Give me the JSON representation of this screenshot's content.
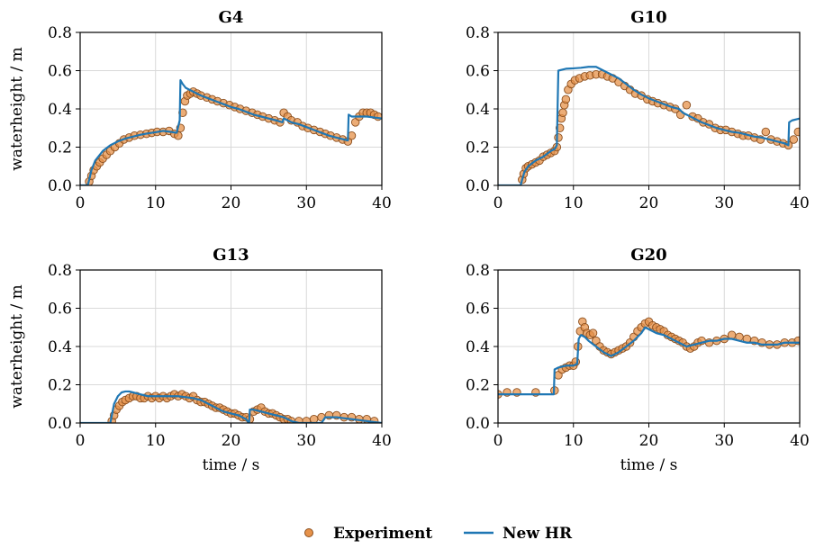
{
  "colors": {
    "experiment_fill": "#e6924a",
    "experiment_edge": "#8a4d1c",
    "model_line": "#1f77b4",
    "grid": "#d9d9d9"
  },
  "legend": {
    "items": [
      {
        "label": "Experiment",
        "marker": "circle"
      },
      {
        "label": "New HR",
        "marker": "line"
      }
    ],
    "placement": "bottom-center"
  },
  "chart_data": [
    {
      "type": "line",
      "title": "G4",
      "xlabel": "",
      "ylabel": "waterheight / m",
      "xlim": [
        0,
        40
      ],
      "ylim": [
        0,
        0.8
      ],
      "xticks": [
        "0",
        "10",
        "20",
        "30",
        "40"
      ],
      "yticks": [
        "0.0",
        "0.2",
        "0.4",
        "0.6",
        "0.8"
      ],
      "grid": true,
      "series": [
        {
          "name": "Experiment",
          "kind": "scatter",
          "x": [
            1.2,
            1.5,
            1.8,
            2.2,
            2.6,
            3.0,
            3.5,
            4.0,
            4.6,
            5.2,
            5.8,
            6.5,
            7.2,
            8.0,
            8.8,
            9.5,
            10.2,
            11.0,
            11.8,
            12.5,
            13.0,
            13.3,
            13.6,
            13.9,
            14.2,
            14.6,
            15.0,
            15.5,
            16.0,
            16.8,
            17.5,
            18.2,
            19.0,
            19.8,
            20.5,
            21.2,
            22.0,
            22.8,
            23.5,
            24.2,
            25.0,
            25.8,
            26.5,
            27.0,
            27.5,
            28.0,
            28.8,
            29.5,
            30.2,
            31.0,
            31.8,
            32.5,
            33.2,
            34.0,
            34.8,
            35.5,
            36.0,
            36.5,
            37.0,
            37.5,
            38.0,
            38.5,
            39.0,
            39.5
          ],
          "y": [
            0.02,
            0.05,
            0.08,
            0.1,
            0.12,
            0.14,
            0.16,
            0.18,
            0.2,
            0.22,
            0.24,
            0.25,
            0.26,
            0.265,
            0.27,
            0.275,
            0.28,
            0.28,
            0.285,
            0.27,
            0.26,
            0.3,
            0.38,
            0.44,
            0.47,
            0.48,
            0.49,
            0.48,
            0.47,
            0.46,
            0.45,
            0.44,
            0.43,
            0.42,
            0.41,
            0.4,
            0.39,
            0.38,
            0.37,
            0.36,
            0.35,
            0.34,
            0.33,
            0.38,
            0.36,
            0.34,
            0.33,
            0.31,
            0.3,
            0.29,
            0.28,
            0.27,
            0.26,
            0.25,
            0.24,
            0.23,
            0.26,
            0.33,
            0.36,
            0.38,
            0.38,
            0.38,
            0.37,
            0.36
          ]
        },
        {
          "name": "New HR",
          "kind": "line",
          "x": [
            0,
            1.0,
            1.2,
            1.5,
            2.0,
            3.0,
            4.0,
            5.0,
            6.0,
            7.0,
            8.0,
            9.0,
            10.0,
            11.0,
            12.0,
            12.8,
            13.2,
            13.3,
            13.6,
            14.0,
            15.0,
            16.0,
            17.0,
            18.0,
            19.0,
            20.0,
            21.0,
            22.0,
            23.0,
            24.0,
            25.0,
            26.0,
            26.8,
            27.0,
            27.5,
            28.0,
            29.0,
            30.0,
            31.0,
            32.0,
            33.0,
            34.0,
            35.0,
            35.5,
            35.6,
            36.0,
            37.0,
            38.0,
            39.0,
            40.0
          ],
          "y": [
            0,
            0,
            0.03,
            0.08,
            0.13,
            0.18,
            0.21,
            0.23,
            0.245,
            0.255,
            0.265,
            0.272,
            0.278,
            0.285,
            0.28,
            0.275,
            0.34,
            0.55,
            0.53,
            0.51,
            0.49,
            0.47,
            0.455,
            0.44,
            0.425,
            0.41,
            0.4,
            0.385,
            0.37,
            0.36,
            0.35,
            0.34,
            0.33,
            0.35,
            0.34,
            0.33,
            0.32,
            0.305,
            0.29,
            0.275,
            0.26,
            0.25,
            0.24,
            0.235,
            0.37,
            0.36,
            0.36,
            0.36,
            0.355,
            0.35
          ]
        }
      ]
    },
    {
      "type": "line",
      "title": "G10",
      "xlabel": "",
      "ylabel": "",
      "xlim": [
        0,
        40
      ],
      "ylim": [
        0,
        0.8
      ],
      "xticks": [
        "0",
        "10",
        "20",
        "30",
        "40"
      ],
      "yticks": [
        "0.0",
        "0.2",
        "0.4",
        "0.6",
        "0.8"
      ],
      "grid": true,
      "series": [
        {
          "name": "Experiment",
          "kind": "scatter",
          "x": [
            3.2,
            3.4,
            3.7,
            4.0,
            4.5,
            5.0,
            5.5,
            6.0,
            6.5,
            7.0,
            7.5,
            7.8,
            8.0,
            8.2,
            8.4,
            8.6,
            8.8,
            9.0,
            9.3,
            9.7,
            10.2,
            10.8,
            11.5,
            12.2,
            13.0,
            13.8,
            14.5,
            15.2,
            16.0,
            16.8,
            17.5,
            18.2,
            19.0,
            19.8,
            20.5,
            21.2,
            22.0,
            22.8,
            23.5,
            24.2,
            25.0,
            25.8,
            26.5,
            27.2,
            28.0,
            28.8,
            29.5,
            30.2,
            31.0,
            31.8,
            32.5,
            33.2,
            34.0,
            34.8,
            35.5,
            36.2,
            37.0,
            37.8,
            38.5,
            39.2,
            39.8
          ],
          "y": [
            0.03,
            0.06,
            0.09,
            0.1,
            0.11,
            0.12,
            0.13,
            0.15,
            0.16,
            0.17,
            0.18,
            0.2,
            0.25,
            0.3,
            0.35,
            0.38,
            0.42,
            0.45,
            0.5,
            0.53,
            0.55,
            0.56,
            0.57,
            0.575,
            0.58,
            0.58,
            0.57,
            0.56,
            0.54,
            0.52,
            0.5,
            0.48,
            0.47,
            0.45,
            0.44,
            0.43,
            0.42,
            0.41,
            0.4,
            0.37,
            0.42,
            0.36,
            0.35,
            0.33,
            0.32,
            0.3,
            0.29,
            0.29,
            0.28,
            0.27,
            0.26,
            0.26,
            0.25,
            0.24,
            0.28,
            0.24,
            0.23,
            0.22,
            0.21,
            0.24,
            0.28
          ]
        },
        {
          "name": "New HR",
          "kind": "line",
          "x": [
            0,
            3.0,
            3.2,
            3.5,
            4.0,
            5.0,
            6.0,
            7.0,
            7.5,
            7.8,
            8.0,
            8.5,
            9.0,
            10.0,
            11.0,
            12.0,
            13.0,
            13.5,
            14.0,
            15.0,
            16.0,
            17.0,
            18.0,
            19.0,
            20.0,
            21.0,
            22.0,
            23.0,
            24.0,
            24.5,
            25.0,
            26.0,
            27.0,
            28.0,
            29.0,
            30.0,
            31.0,
            32.0,
            33.0,
            34.0,
            35.0,
            36.0,
            37.0,
            38.0,
            38.5,
            38.6,
            39.0,
            40.0
          ],
          "y": [
            0,
            0,
            0.03,
            0.07,
            0.1,
            0.13,
            0.15,
            0.18,
            0.19,
            0.21,
            0.6,
            0.605,
            0.61,
            0.612,
            0.615,
            0.62,
            0.62,
            0.61,
            0.6,
            0.58,
            0.56,
            0.53,
            0.5,
            0.475,
            0.455,
            0.44,
            0.425,
            0.41,
            0.4,
            0.38,
            0.37,
            0.35,
            0.33,
            0.315,
            0.3,
            0.29,
            0.28,
            0.275,
            0.265,
            0.255,
            0.25,
            0.24,
            0.23,
            0.22,
            0.21,
            0.33,
            0.34,
            0.35
          ]
        }
      ]
    },
    {
      "type": "line",
      "title": "G13",
      "xlabel": "time / s",
      "ylabel": "waterheight / m",
      "xlim": [
        0,
        40
      ],
      "ylim": [
        0,
        0.8
      ],
      "xticks": [
        "0",
        "10",
        "20",
        "30",
        "40"
      ],
      "yticks": [
        "0.0",
        "0.2",
        "0.4",
        "0.6",
        "0.8"
      ],
      "grid": true,
      "series": [
        {
          "name": "Experiment",
          "kind": "scatter",
          "x": [
            4.2,
            4.5,
            4.8,
            5.2,
            5.6,
            6.0,
            6.5,
            7.0,
            7.5,
            8.0,
            8.5,
            9.0,
            9.5,
            10.0,
            10.5,
            11.0,
            11.5,
            12.0,
            12.5,
            13.0,
            13.5,
            14.0,
            14.5,
            15.0,
            15.5,
            16.0,
            16.5,
            17.0,
            17.5,
            18.0,
            18.5,
            19.0,
            19.5,
            20.0,
            20.5,
            21.0,
            21.5,
            22.0,
            22.5,
            23.0,
            23.5,
            24.0,
            24.5,
            25.0,
            25.5,
            26.0,
            26.5,
            27.0,
            27.5,
            28.0,
            29.0,
            30.0,
            31.0,
            32.0,
            33.0,
            34.0,
            35.0,
            36.0,
            37.0,
            38.0,
            39.0
          ],
          "y": [
            0.01,
            0.04,
            0.07,
            0.09,
            0.11,
            0.12,
            0.13,
            0.14,
            0.14,
            0.13,
            0.13,
            0.14,
            0.13,
            0.14,
            0.13,
            0.14,
            0.13,
            0.14,
            0.15,
            0.14,
            0.15,
            0.14,
            0.13,
            0.14,
            0.12,
            0.11,
            0.11,
            0.1,
            0.09,
            0.08,
            0.08,
            0.07,
            0.06,
            0.05,
            0.05,
            0.04,
            0.03,
            0.03,
            0.02,
            0.06,
            0.07,
            0.08,
            0.06,
            0.05,
            0.05,
            0.04,
            0.03,
            0.02,
            0.02,
            0.01,
            0.01,
            0.01,
            0.02,
            0.03,
            0.04,
            0.04,
            0.03,
            0.03,
            0.02,
            0.02,
            0.01
          ]
        },
        {
          "name": "New HR",
          "kind": "line",
          "x": [
            0,
            4.0,
            4.2,
            4.5,
            5.0,
            5.5,
            6.0,
            6.5,
            7.0,
            8.0,
            9.0,
            10.0,
            11.0,
            12.0,
            13.0,
            14.0,
            15.0,
            16.0,
            17.0,
            18.0,
            19.0,
            20.0,
            21.0,
            22.0,
            22.4,
            22.5,
            23.0,
            24.0,
            25.0,
            26.0,
            27.0,
            28.0,
            29.0,
            30.0,
            31.0,
            32.0,
            32.5,
            33.0,
            34.0,
            35.0,
            36.0,
            37.0,
            38.0,
            39.0,
            40.0
          ],
          "y": [
            0,
            0,
            0.04,
            0.1,
            0.14,
            0.16,
            0.165,
            0.165,
            0.16,
            0.15,
            0.14,
            0.14,
            0.14,
            0.14,
            0.14,
            0.135,
            0.13,
            0.12,
            0.1,
            0.08,
            0.06,
            0.05,
            0.04,
            0.02,
            0.0,
            0.07,
            0.07,
            0.06,
            0.05,
            0.04,
            0.03,
            0.01,
            0.0,
            0.0,
            0.0,
            0.0,
            0.03,
            0.03,
            0.03,
            0.025,
            0.02,
            0.015,
            0.01,
            0.005,
            0.0
          ]
        }
      ]
    },
    {
      "type": "line",
      "title": "G20",
      "xlabel": "time / s",
      "ylabel": "",
      "xlim": [
        0,
        40
      ],
      "ylim": [
        0,
        0.8
      ],
      "xticks": [
        "0",
        "10",
        "20",
        "30",
        "40"
      ],
      "yticks": [
        "0.0",
        "0.2",
        "0.4",
        "0.6",
        "0.8"
      ],
      "grid": true,
      "series": [
        {
          "name": "Experiment",
          "kind": "scatter",
          "x": [
            0.0,
            1.2,
            2.5,
            5.0,
            7.5,
            8.0,
            8.5,
            9.0,
            9.5,
            10.0,
            10.3,
            10.6,
            10.9,
            11.2,
            11.5,
            11.8,
            12.2,
            12.6,
            13.0,
            13.5,
            14.0,
            14.5,
            15.0,
            15.5,
            16.0,
            16.5,
            17.0,
            17.5,
            18.0,
            18.5,
            19.0,
            19.5,
            20.0,
            20.5,
            21.0,
            21.5,
            22.0,
            22.5,
            23.0,
            23.5,
            24.0,
            24.5,
            25.0,
            25.5,
            26.0,
            26.5,
            27.0,
            28.0,
            29.0,
            30.0,
            31.0,
            32.0,
            33.0,
            34.0,
            35.0,
            36.0,
            37.0,
            38.0,
            39.0,
            39.8
          ],
          "y": [
            0.15,
            0.16,
            0.16,
            0.16,
            0.17,
            0.25,
            0.28,
            0.29,
            0.3,
            0.3,
            0.32,
            0.4,
            0.48,
            0.53,
            0.5,
            0.47,
            0.46,
            0.47,
            0.43,
            0.4,
            0.38,
            0.37,
            0.36,
            0.37,
            0.38,
            0.39,
            0.4,
            0.42,
            0.45,
            0.48,
            0.5,
            0.52,
            0.53,
            0.51,
            0.5,
            0.49,
            0.48,
            0.46,
            0.45,
            0.44,
            0.43,
            0.42,
            0.4,
            0.39,
            0.4,
            0.42,
            0.43,
            0.42,
            0.43,
            0.44,
            0.46,
            0.45,
            0.44,
            0.43,
            0.42,
            0.41,
            0.41,
            0.42,
            0.42,
            0.43
          ]
        },
        {
          "name": "New HR",
          "kind": "line",
          "x": [
            0,
            7.0,
            7.4,
            7.5,
            8.0,
            9.0,
            10.0,
            10.5,
            10.7,
            11.0,
            11.5,
            12.0,
            13.0,
            14.0,
            15.0,
            16.0,
            17.0,
            18.0,
            19.0,
            19.5,
            20.0,
            21.0,
            22.0,
            23.0,
            24.0,
            25.0,
            26.0,
            27.0,
            28.0,
            29.0,
            30.0,
            31.0,
            32.0,
            33.0,
            34.0,
            35.0,
            36.0,
            37.0,
            38.0,
            39.0,
            40.0
          ],
          "y": [
            0.15,
            0.15,
            0.15,
            0.28,
            0.29,
            0.3,
            0.3,
            0.31,
            0.44,
            0.46,
            0.45,
            0.43,
            0.4,
            0.37,
            0.35,
            0.37,
            0.4,
            0.43,
            0.47,
            0.5,
            0.49,
            0.47,
            0.46,
            0.44,
            0.42,
            0.4,
            0.41,
            0.42,
            0.43,
            0.43,
            0.44,
            0.44,
            0.43,
            0.42,
            0.42,
            0.41,
            0.41,
            0.41,
            0.42,
            0.42,
            0.42
          ]
        }
      ]
    }
  ]
}
